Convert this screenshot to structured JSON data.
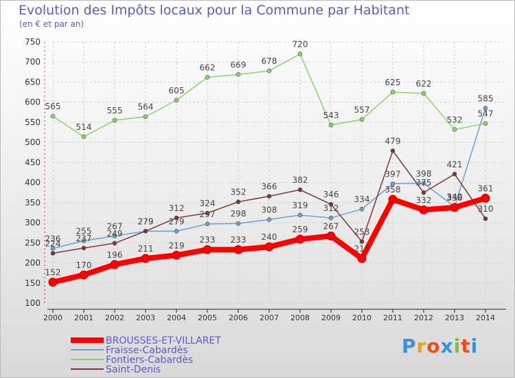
{
  "title": "Evolution des Impôts locaux pour la Commune par Habitant",
  "subtitle": "(en € et par an)",
  "logo_text": "Proxiti",
  "chart_data": {
    "type": "line",
    "title": "Evolution des Impôts locaux pour la Commune par Habitant",
    "subtitle": "(en € et par an)",
    "xlabel": "",
    "ylabel": "",
    "ylim": [
      100,
      750
    ],
    "yticks": [
      100,
      150,
      200,
      250,
      300,
      350,
      400,
      450,
      500,
      550,
      600,
      650,
      700,
      750
    ],
    "x": [
      "2000",
      "2001",
      "2002",
      "2003",
      "2004",
      "2005",
      "2006",
      "2007",
      "2008",
      "2009",
      "2010",
      "2011",
      "2012",
      "2013",
      "2014"
    ],
    "grid": true,
    "legend_position": "bottom-left",
    "series": [
      {
        "name": "Fontiers-Cabardès",
        "color": "#88d468",
        "values": [
          565,
          514,
          555,
          564,
          605,
          662,
          669,
          678,
          720,
          543,
          557,
          625,
          622,
          532,
          547
        ]
      },
      {
        "name": "Fraisse-Cabardès",
        "color": "#6b9fcf",
        "values": [
          236,
          255,
          267,
          279,
          279,
          297,
          298,
          308,
          319,
          312,
          334,
          397,
          398,
          340,
          585
        ]
      },
      {
        "name": "Saint-Denis",
        "color": "#7a3636",
        "values": [
          224,
          237,
          249,
          279,
          312,
          324,
          352,
          366,
          382,
          346,
          253,
          479,
          375,
          421,
          310
        ]
      },
      {
        "name": "BROUSSES-ET-VILLARET",
        "color": "#ff0000",
        "values": [
          152,
          170,
          196,
          211,
          219,
          233,
          233,
          240,
          259,
          267,
          211,
          358,
          332,
          338,
          361
        ]
      }
    ],
    "legend": [
      "BROUSSES-ET-VILLARET",
      "Fraisse-Cabardès",
      "Fontiers-Cabardès",
      "Saint-Denis"
    ]
  }
}
